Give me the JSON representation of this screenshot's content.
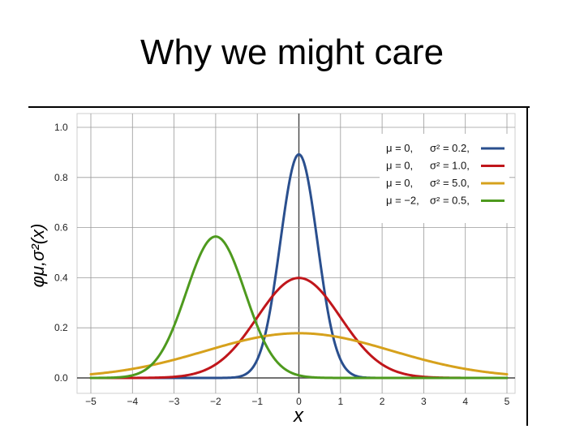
{
  "slide": {
    "title": "Why we might care"
  },
  "colors": {
    "blue": "#2a4f8e",
    "red": "#c0161b",
    "orange": "#d6a11c",
    "green": "#4e9a1e",
    "grid": "#9a9a9a",
    "axis": "#444444"
  },
  "chart_data": {
    "type": "line",
    "title": "",
    "xlabel": "x",
    "ylabel": "φμ,σ²(x)",
    "xlim": [
      -5,
      5
    ],
    "ylim": [
      0,
      1.0
    ],
    "xticks": [
      "−5",
      "−4",
      "−3",
      "−2",
      "−1",
      "0",
      "1",
      "2",
      "3",
      "4",
      "5"
    ],
    "yticks": [
      "0.0",
      "0.2",
      "0.4",
      "0.6",
      "0.8",
      "1.0"
    ],
    "grid": true,
    "legend_position": "top-right",
    "series": [
      {
        "legend_mu": "μ = 0,",
        "legend_sigma": "σ² = 0.2,",
        "mu": 0,
        "sigma2": 0.2,
        "color": "#2a4f8e"
      },
      {
        "legend_mu": "μ = 0,",
        "legend_sigma": "σ² = 1.0,",
        "mu": 0,
        "sigma2": 1.0,
        "color": "#c0161b"
      },
      {
        "legend_mu": "μ = 0,",
        "legend_sigma": "σ² = 5.0,",
        "mu": 0,
        "sigma2": 5.0,
        "color": "#d6a11c"
      },
      {
        "legend_mu": "μ = −2,",
        "legend_sigma": "σ² = 0.5,",
        "mu": -2,
        "sigma2": 0.5,
        "color": "#4e9a1e"
      }
    ]
  }
}
